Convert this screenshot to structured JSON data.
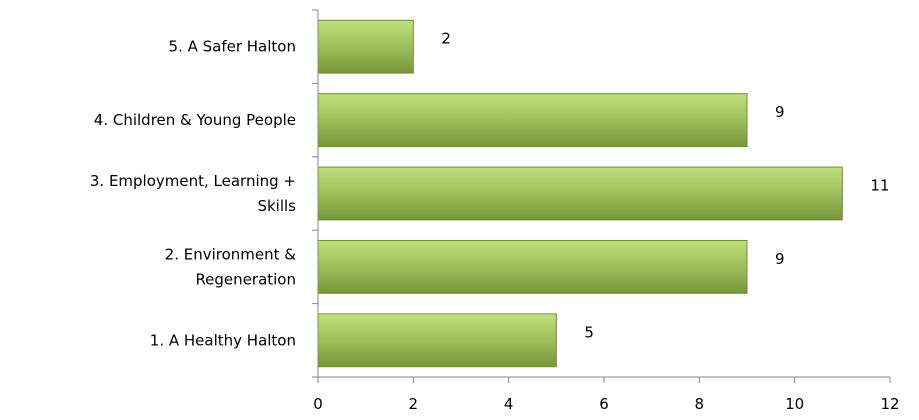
{
  "chart_data": {
    "type": "bar",
    "orientation": "horizontal",
    "categories": [
      [
        "5. A Safer Halton"
      ],
      [
        "4. Children & Young People"
      ],
      [
        "3. Employment, Learning +",
        "Skills"
      ],
      [
        "2. Environment &",
        "Regeneration"
      ],
      [
        "1. A Healthy Halton"
      ]
    ],
    "values": [
      2,
      9,
      11,
      9,
      5
    ],
    "value_labels": [
      "2",
      "9",
      "11",
      "9",
      "5"
    ],
    "xlim": [
      0,
      12
    ],
    "x_ticks": [
      0,
      2,
      4,
      6,
      8,
      10,
      12
    ],
    "x_tick_labels": [
      "0",
      "2",
      "4",
      "6",
      "8",
      "10",
      "12"
    ],
    "grid": false,
    "legend": "none",
    "colors": {
      "bar_light": "#bfe07a",
      "bar_mid": "#9bbb59",
      "bar_dark": "#76963a",
      "axis": "#868686"
    }
  }
}
